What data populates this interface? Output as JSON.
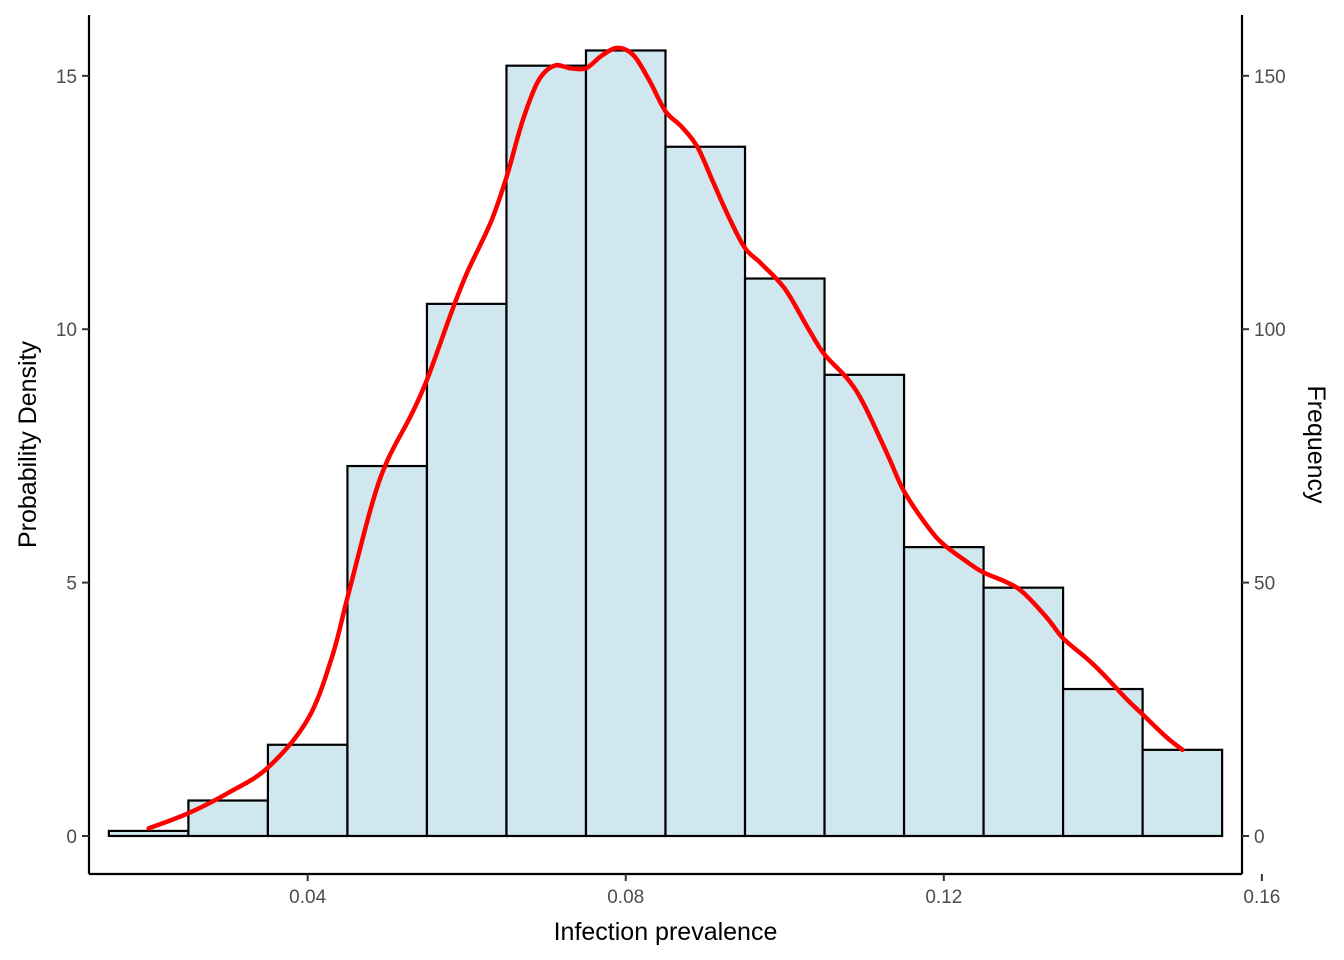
{
  "chart_data": {
    "type": "bar",
    "subtype": "histogram-with-density",
    "title": "",
    "xlabel": "Infection prevalence",
    "ylabel": "Probability Density",
    "y2label": "Frequency",
    "xlim": [
      0.0125,
      0.1575
    ],
    "ylim": [
      -0.75,
      16.2
    ],
    "y2lim": [
      -7.5,
      162
    ],
    "x_ticks": [
      0.04,
      0.08,
      0.12,
      0.16
    ],
    "x_tick_labels": [
      "0.04",
      "0.08",
      "0.12",
      "0.16"
    ],
    "y_ticks": [
      0,
      5,
      10,
      15
    ],
    "y_tick_labels": [
      "0",
      "5",
      "10",
      "15"
    ],
    "y2_ticks": [
      0,
      50,
      100,
      150
    ],
    "y2_tick_labels": [
      "0",
      "50",
      "100",
      "150"
    ],
    "grid": false,
    "bins": [
      {
        "x0": 0.015,
        "x1": 0.025,
        "density": 0.1,
        "frequency": 1
      },
      {
        "x0": 0.025,
        "x1": 0.035,
        "density": 0.7,
        "frequency": 7
      },
      {
        "x0": 0.035,
        "x1": 0.045,
        "density": 1.8,
        "frequency": 18
      },
      {
        "x0": 0.045,
        "x1": 0.055,
        "density": 7.3,
        "frequency": 73
      },
      {
        "x0": 0.055,
        "x1": 0.065,
        "density": 10.5,
        "frequency": 105
      },
      {
        "x0": 0.065,
        "x1": 0.075,
        "density": 15.2,
        "frequency": 152
      },
      {
        "x0": 0.075,
        "x1": 0.085,
        "density": 15.5,
        "frequency": 155
      },
      {
        "x0": 0.085,
        "x1": 0.095,
        "density": 13.6,
        "frequency": 136
      },
      {
        "x0": 0.095,
        "x1": 0.105,
        "density": 11.0,
        "frequency": 110
      },
      {
        "x0": 0.105,
        "x1": 0.115,
        "density": 9.1,
        "frequency": 91
      },
      {
        "x0": 0.115,
        "x1": 0.125,
        "density": 5.7,
        "frequency": 57
      },
      {
        "x0": 0.125,
        "x1": 0.135,
        "density": 4.9,
        "frequency": 49
      },
      {
        "x0": 0.135,
        "x1": 0.145,
        "density": 2.9,
        "frequency": 29
      },
      {
        "x0": 0.145,
        "x1": 0.155,
        "density": 1.7,
        "frequency": 17
      }
    ],
    "density_curve": {
      "x": [
        0.02,
        0.025,
        0.03,
        0.035,
        0.04,
        0.043,
        0.045,
        0.048,
        0.05,
        0.053,
        0.055,
        0.058,
        0.06,
        0.063,
        0.065,
        0.067,
        0.069,
        0.071,
        0.073,
        0.075,
        0.077,
        0.079,
        0.081,
        0.083,
        0.085,
        0.087,
        0.089,
        0.091,
        0.093,
        0.095,
        0.097,
        0.1,
        0.103,
        0.105,
        0.108,
        0.11,
        0.113,
        0.115,
        0.118,
        0.12,
        0.123,
        0.125,
        0.128,
        0.13,
        0.133,
        0.135,
        0.138,
        0.14,
        0.143,
        0.145,
        0.148,
        0.15
      ],
      "y": [
        0.15,
        0.45,
        0.85,
        1.35,
        2.3,
        3.5,
        4.7,
        6.5,
        7.4,
        8.3,
        9.0,
        10.3,
        11.1,
        12.1,
        13.0,
        14.1,
        14.9,
        15.2,
        15.15,
        15.15,
        15.4,
        15.55,
        15.4,
        14.9,
        14.3,
        14.0,
        13.6,
        12.9,
        12.2,
        11.6,
        11.3,
        10.8,
        10.0,
        9.5,
        9.0,
        8.5,
        7.5,
        6.8,
        6.1,
        5.75,
        5.4,
        5.2,
        5.0,
        4.8,
        4.3,
        3.9,
        3.5,
        3.2,
        2.7,
        2.4,
        1.95,
        1.7
      ]
    },
    "colors": {
      "bar_fill": "#d1e7ef",
      "bar_stroke": "#000000",
      "density_line": "#ff0000"
    }
  }
}
